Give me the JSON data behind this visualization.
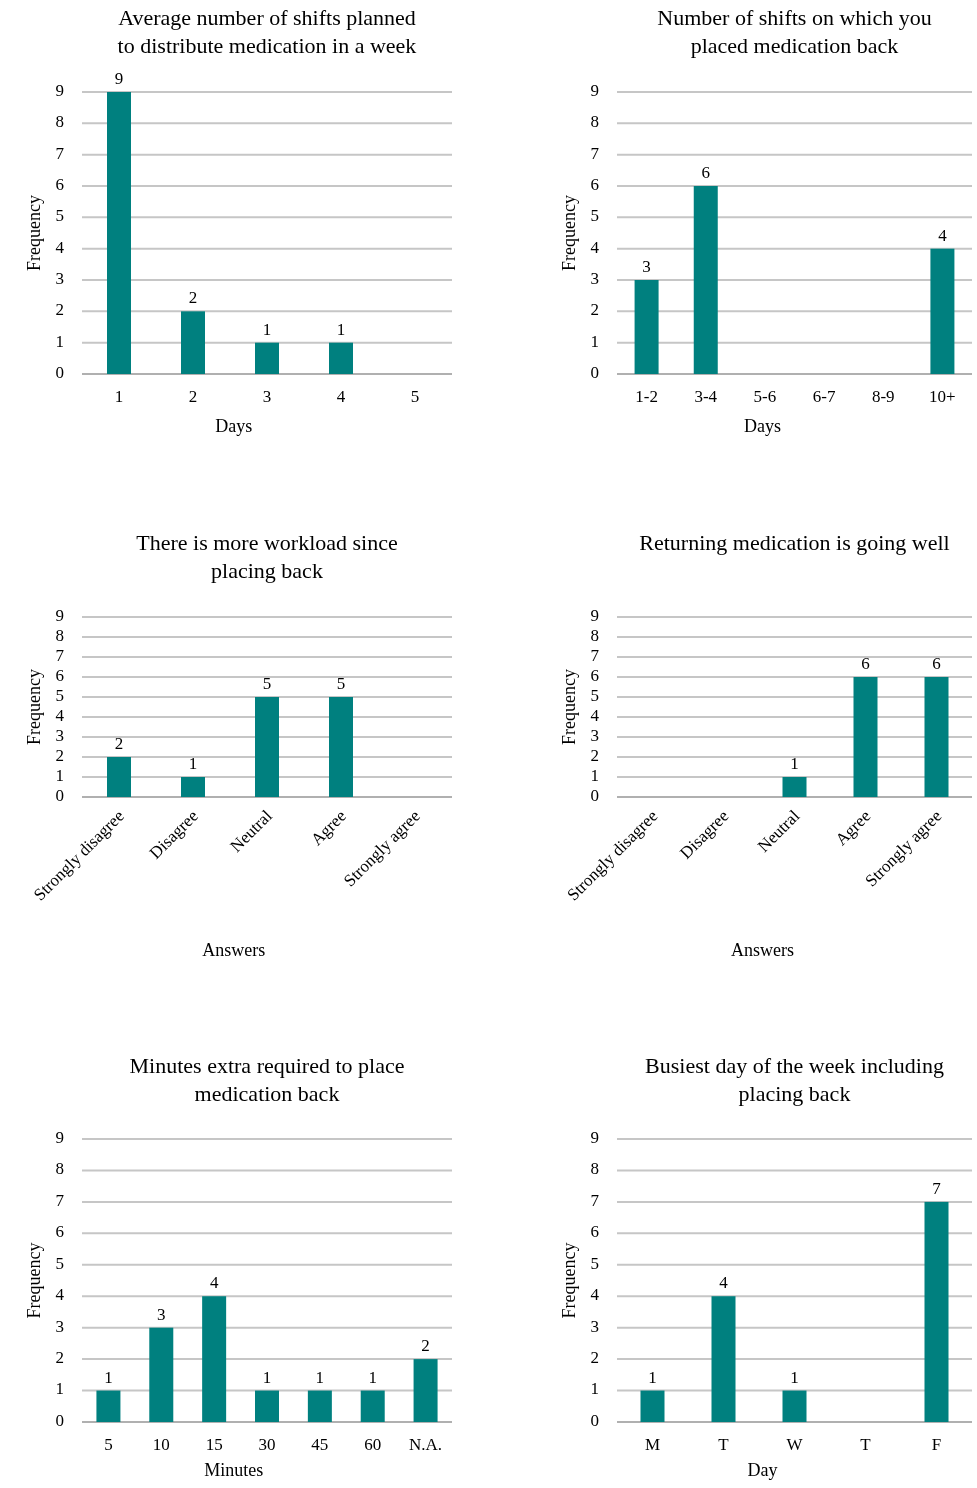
{
  "chart_data": [
    {
      "type": "bar",
      "title": "Average number of shifts planned to distribute medication in a week",
      "xlabel": "Days",
      "ylabel": "Frequency",
      "categories": [
        "1",
        "2",
        "3",
        "4",
        "5"
      ],
      "values": [
        9,
        2,
        1,
        1,
        null
      ],
      "color": "#00807f",
      "ylim": [
        0,
        9
      ],
      "yticks": [
        0,
        1,
        2,
        3,
        4,
        5,
        6,
        7,
        8,
        9
      ],
      "grid": "y",
      "data_labels": true
    },
    {
      "type": "bar",
      "title": "Number of shifts on which you placed medication back",
      "xlabel": "Days",
      "ylabel": "Frequency",
      "categories": [
        "1-2",
        "3-4",
        "5-6",
        "6-7",
        "8-9",
        "10+"
      ],
      "values": [
        3,
        6,
        null,
        null,
        null,
        4
      ],
      "color": "#00807f",
      "ylim": [
        0,
        9
      ],
      "yticks": [
        0,
        1,
        2,
        3,
        4,
        5,
        6,
        7,
        8,
        9
      ],
      "grid": "y",
      "data_labels": true
    },
    {
      "type": "bar",
      "title": "There is more workload since placing back",
      "xlabel": "Answers",
      "ylabel": "Frequency",
      "categories": [
        "Strongly disagree",
        "Disagree",
        "Neutral",
        "Agree",
        "Strongly agree"
      ],
      "values": [
        2,
        1,
        5,
        5,
        null
      ],
      "color": "#00807f",
      "ylim": [
        0,
        9
      ],
      "yticks": [
        0,
        1,
        2,
        3,
        4,
        5,
        6,
        7,
        8,
        9
      ],
      "grid": "y",
      "data_labels": true
    },
    {
      "type": "bar",
      "title": "Returning medication is going well",
      "xlabel": "Answers",
      "ylabel": "Frequency",
      "categories": [
        "Strongly disagree",
        "Disagree",
        "Neutral",
        "Agree",
        "Strongly agree"
      ],
      "values": [
        null,
        null,
        1,
        6,
        6
      ],
      "color": "#00807f",
      "ylim": [
        0,
        9
      ],
      "yticks": [
        0,
        1,
        2,
        3,
        4,
        5,
        6,
        7,
        8,
        9
      ],
      "grid": "y",
      "data_labels": true
    },
    {
      "type": "bar",
      "title": "Minutes extra required to place medication back",
      "xlabel": "Minutes",
      "ylabel": "Frequency",
      "categories": [
        "5",
        "10",
        "15",
        "30",
        "45",
        "60",
        "N.A."
      ],
      "values": [
        1,
        3,
        4,
        1,
        1,
        1,
        2
      ],
      "color": "#00807f",
      "ylim": [
        0,
        9
      ],
      "yticks": [
        0,
        1,
        2,
        3,
        4,
        5,
        6,
        7,
        8,
        9
      ],
      "grid": "y",
      "data_labels": true
    },
    {
      "type": "bar",
      "title": "Busiest day of the week including placing back",
      "xlabel": "Day",
      "ylabel": "Frequency",
      "categories": [
        "M",
        "T",
        "W",
        "T",
        "F"
      ],
      "values": [
        1,
        4,
        1,
        null,
        7
      ],
      "color": "#00807f",
      "ylim": [
        0,
        9
      ],
      "yticks": [
        0,
        1,
        2,
        3,
        4,
        5,
        6,
        7,
        8,
        9
      ],
      "grid": "y",
      "data_labels": true
    }
  ]
}
